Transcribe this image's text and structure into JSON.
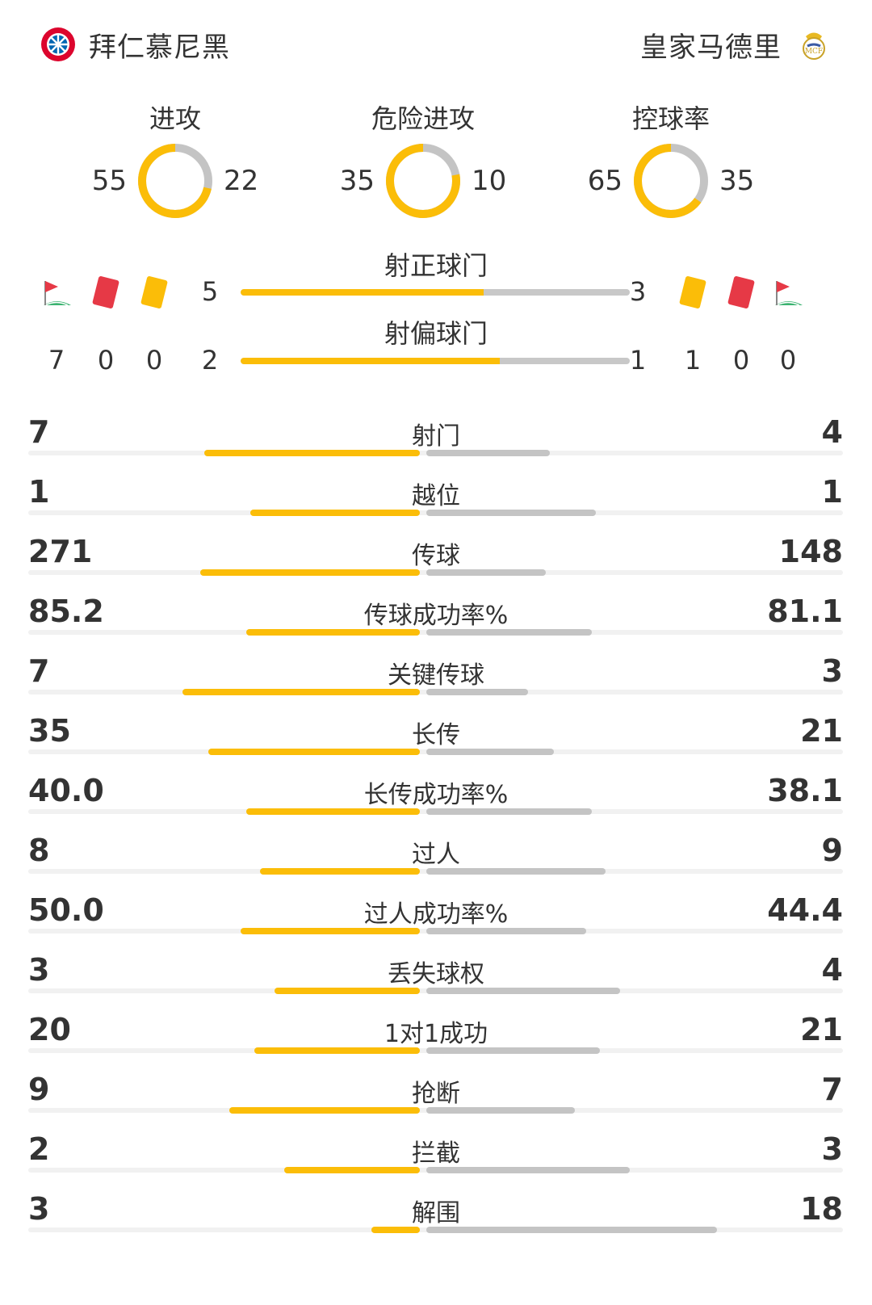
{
  "header": {
    "home_team": "拜仁慕尼黑",
    "away_team": "皇家马德里",
    "home_logo_icon": "bayern-logo-icon",
    "away_logo_icon": "real-madrid-logo-icon"
  },
  "colors": {
    "home": "#fbbd08",
    "away": "#c4c4c4",
    "red_card": "#e63946",
    "yellow_card": "#fbbd08"
  },
  "donuts": [
    {
      "title": "进攻",
      "home": "55",
      "away": "22",
      "home_value": 55,
      "away_value": 22
    },
    {
      "title": "危险进攻",
      "home": "35",
      "away": "10",
      "home_value": 35,
      "away_value": 10
    },
    {
      "title": "控球率",
      "home": "65",
      "away": "35",
      "home_value": 65,
      "away_value": 35
    }
  ],
  "shots": {
    "on_target": {
      "label": "射正球门",
      "home": "5",
      "away": "3",
      "home_value": 5,
      "away_value": 3
    },
    "off_target": {
      "label": "射偏球门",
      "home": "2",
      "away": "1",
      "home_value": 2,
      "away_value": 1
    }
  },
  "discipline": {
    "home": {
      "corners": "7",
      "red": "0",
      "yellow": "0"
    },
    "away": {
      "yellow": "1",
      "red": "0",
      "corners": "0"
    }
  },
  "stats": [
    {
      "label": "射门",
      "home": "7",
      "away": "4",
      "home_value": 7,
      "away_value": 4
    },
    {
      "label": "越位",
      "home": "1",
      "away": "1",
      "home_value": 1,
      "away_value": 1
    },
    {
      "label": "传球",
      "home": "271",
      "away": "148",
      "home_value": 271,
      "away_value": 148
    },
    {
      "label": "传球成功率%",
      "home": "85.2",
      "away": "81.1",
      "home_value": 85.2,
      "away_value": 81.1
    },
    {
      "label": "关键传球",
      "home": "7",
      "away": "3",
      "home_value": 7,
      "away_value": 3
    },
    {
      "label": "长传",
      "home": "35",
      "away": "21",
      "home_value": 35,
      "away_value": 21
    },
    {
      "label": "长传成功率%",
      "home": "40.0",
      "away": "38.1",
      "home_value": 40.0,
      "away_value": 38.1
    },
    {
      "label": "过人",
      "home": "8",
      "away": "9",
      "home_value": 8,
      "away_value": 9
    },
    {
      "label": "过人成功率%",
      "home": "50.0",
      "away": "44.4",
      "home_value": 50.0,
      "away_value": 44.4
    },
    {
      "label": "丢失球权",
      "home": "3",
      "away": "4",
      "home_value": 3,
      "away_value": 4
    },
    {
      "label": "1对1成功",
      "home": "20",
      "away": "21",
      "home_value": 20,
      "away_value": 21
    },
    {
      "label": "抢断",
      "home": "9",
      "away": "7",
      "home_value": 9,
      "away_value": 7
    },
    {
      "label": "拦截",
      "home": "2",
      "away": "3",
      "home_value": 2,
      "away_value": 3
    },
    {
      "label": "解围",
      "home": "3",
      "away": "18",
      "home_value": 3,
      "away_value": 18
    }
  ]
}
